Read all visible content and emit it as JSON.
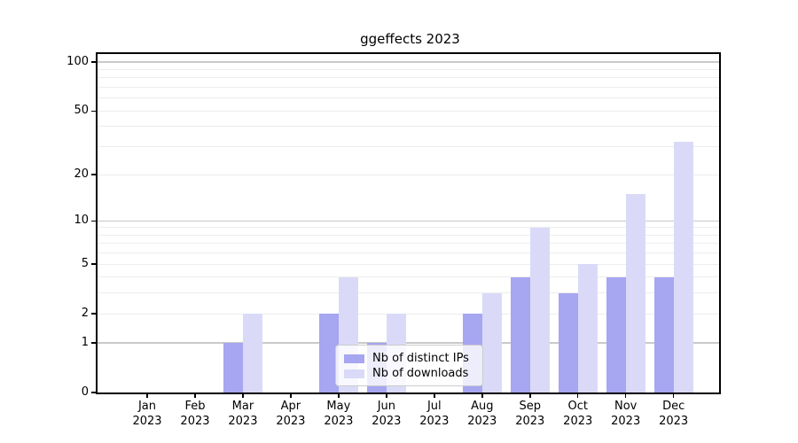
{
  "figure": {
    "title": "ggeffects 2023",
    "background": "#ffffff"
  },
  "colors": {
    "distinct_ips_bar": "#a6a6f1",
    "downloads_bar": "#dadaf8",
    "grid_major": "#c9c9c9",
    "grid_minor": "#ededed",
    "axis": "#000000",
    "legend_border": "#cccccc"
  },
  "legend": {
    "entries": [
      {
        "label": "Nb of distinct IPs",
        "color": "#a6a6f1"
      },
      {
        "label": "Nb of downloads",
        "color": "#dadaf8"
      }
    ]
  },
  "chart_data": {
    "type": "bar",
    "title": "ggeffects 2023",
    "categories": [
      {
        "month": "Jan",
        "year": "2023"
      },
      {
        "month": "Feb",
        "year": "2023"
      },
      {
        "month": "Mar",
        "year": "2023"
      },
      {
        "month": "Apr",
        "year": "2023"
      },
      {
        "month": "May",
        "year": "2023"
      },
      {
        "month": "Jun",
        "year": "2023"
      },
      {
        "month": "Jul",
        "year": "2023"
      },
      {
        "month": "Aug",
        "year": "2023"
      },
      {
        "month": "Sep",
        "year": "2023"
      },
      {
        "month": "Oct",
        "year": "2023"
      },
      {
        "month": "Nov",
        "year": "2023"
      },
      {
        "month": "Dec",
        "year": "2023"
      }
    ],
    "series": [
      {
        "name": "Nb of distinct IPs",
        "color": "#a6a6f1",
        "values": [
          0,
          0,
          1,
          0,
          2,
          1,
          0,
          2,
          4,
          3,
          4,
          4
        ]
      },
      {
        "name": "Nb of downloads",
        "color": "#dadaf8",
        "values": [
          0,
          0,
          2,
          0,
          4,
          2,
          0,
          3,
          9,
          5,
          15,
          32
        ]
      }
    ],
    "xlabel": "",
    "ylabel": "",
    "yscale": "log1p",
    "yticks": [
      0,
      1,
      2,
      5,
      10,
      20,
      50,
      100
    ],
    "ylim": [
      0,
      113
    ],
    "grid": true,
    "legend_position": "inside lower-center"
  }
}
